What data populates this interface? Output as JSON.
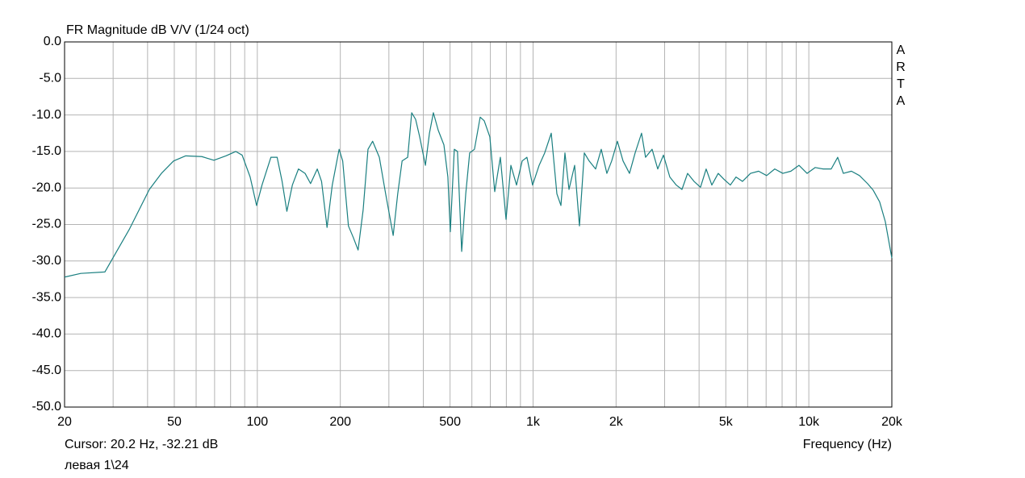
{
  "chart_data": {
    "type": "line",
    "title": "FR Magnitude dB V/V (1/24 oct)",
    "watermark": "ARTA",
    "cursor_text": "Cursor: 20.2 Hz, -32.21 dB",
    "xlabel": "Frequency (Hz)",
    "footer": "левая 1\\24",
    "xscale": "log",
    "grid": true,
    "xlim": [
      20,
      20000
    ],
    "ylim": [
      -50,
      0
    ],
    "xticks": [
      20,
      {
        "value": 30,
        "label": null
      },
      {
        "value": 40,
        "label": null
      },
      50,
      {
        "value": 60,
        "label": null
      },
      {
        "value": 70,
        "label": null
      },
      {
        "value": 80,
        "label": null
      },
      {
        "value": 90,
        "label": null
      },
      100,
      200,
      {
        "value": 300,
        "label": null
      },
      {
        "value": 400,
        "label": null
      },
      500,
      {
        "value": 600,
        "label": null
      },
      {
        "value": 700,
        "label": null
      },
      {
        "value": 800,
        "label": null
      },
      {
        "value": 900,
        "label": null
      },
      {
        "value": 1000,
        "label": "1k"
      },
      {
        "value": 2000,
        "label": "2k"
      },
      {
        "value": 3000,
        "label": null
      },
      {
        "value": 4000,
        "label": null
      },
      {
        "value": 5000,
        "label": "5k"
      },
      {
        "value": 6000,
        "label": null
      },
      {
        "value": 7000,
        "label": null
      },
      {
        "value": 8000,
        "label": null
      },
      {
        "value": 9000,
        "label": null
      },
      {
        "value": 10000,
        "label": "10k"
      },
      {
        "value": 20000,
        "label": "20k"
      }
    ],
    "yticks": [
      {
        "value": 0,
        "label": "0.0"
      },
      {
        "value": -5,
        "label": "-5.0"
      },
      {
        "value": -10,
        "label": "-10.0"
      },
      {
        "value": -15,
        "label": "-15.0"
      },
      {
        "value": -20,
        "label": "-20.0"
      },
      {
        "value": -25,
        "label": "-25.0"
      },
      {
        "value": -30,
        "label": "-30.0"
      },
      {
        "value": -35,
        "label": "-35.0"
      },
      {
        "value": -40,
        "label": "-40.0"
      },
      {
        "value": -45,
        "label": "-45.0"
      },
      {
        "value": -50,
        "label": "-50.0"
      }
    ],
    "x": [
      20,
      22.9,
      28.0,
      34.3,
      40.6,
      44.9,
      49.7,
      55.0,
      62.9,
      69.6,
      77.0,
      83.5,
      88.1,
      94.2,
      99.4,
      104,
      112,
      118,
      123,
      128,
      134,
      141,
      149,
      156,
      165,
      171,
      179,
      187,
      198,
      204,
      214,
      223,
      232,
      242,
      252,
      262,
      277,
      292,
      311,
      323,
      335,
      351,
      363,
      375,
      388,
      407,
      421,
      435,
      453,
      475,
      491,
      501,
      518,
      532,
      551,
      570,
      589,
      613,
      643,
      665,
      697,
      726,
      761,
      798,
      831,
      871,
      913,
      950,
      996,
      1052,
      1102,
      1164,
      1220,
      1262,
      1305,
      1350,
      1415,
      1473,
      1534,
      1597,
      1686,
      1767,
      1852,
      1928,
      2022,
      2120,
      2237,
      2345,
      2474,
      2558,
      2702,
      2832,
      2970,
      3133,
      3306,
      3467,
      3634,
      3835,
      4047,
      4243,
      4449,
      4693,
      4920,
      5193,
      5445,
      5745,
      6146,
      6576,
      7032,
      7524,
      8048,
      8610,
      9210,
      9852,
      10540,
      11272,
      12056,
      12726,
      13342,
      14272,
      15266,
      16326,
      17116,
      18064,
      18938,
      20000
    ],
    "series": [
      {
        "name": "левая 1\\24",
        "color": "#1a7f80",
        "values": [
          -32.2,
          -31.7,
          -31.5,
          -25.7,
          -20.2,
          -18.0,
          -16.3,
          -15.6,
          -15.7,
          -16.2,
          -15.6,
          -15.0,
          -15.5,
          -18.5,
          -22.4,
          -19.6,
          -15.8,
          -15.8,
          -19.1,
          -23.2,
          -19.6,
          -17.4,
          -18.0,
          -19.4,
          -17.4,
          -19.1,
          -25.4,
          -19.6,
          -14.7,
          -16.3,
          -25.2,
          -26.8,
          -28.5,
          -23.0,
          -14.7,
          -13.6,
          -15.8,
          -20.8,
          -26.5,
          -20.8,
          -16.3,
          -15.8,
          -9.7,
          -10.6,
          -13.0,
          -16.9,
          -12.5,
          -9.7,
          -12.1,
          -14.1,
          -18.5,
          -26.0,
          -14.7,
          -15.0,
          -28.7,
          -20.8,
          -15.2,
          -14.7,
          -10.3,
          -10.8,
          -13.0,
          -20.5,
          -15.8,
          -24.3,
          -16.9,
          -19.6,
          -16.3,
          -15.8,
          -19.6,
          -16.9,
          -15.2,
          -12.5,
          -20.8,
          -22.4,
          -15.2,
          -20.2,
          -16.9,
          -25.2,
          -15.2,
          -16.3,
          -17.4,
          -14.7,
          -18.0,
          -16.3,
          -13.6,
          -16.3,
          -18.0,
          -15.2,
          -12.5,
          -15.8,
          -14.7,
          -17.4,
          -15.5,
          -18.5,
          -19.6,
          -20.2,
          -18.0,
          -19.1,
          -19.9,
          -17.4,
          -19.6,
          -18.0,
          -18.8,
          -19.6,
          -18.5,
          -19.1,
          -18.0,
          -17.7,
          -18.3,
          -17.4,
          -18.0,
          -17.7,
          -16.9,
          -18.0,
          -17.2,
          -17.4,
          -17.4,
          -15.8,
          -18.0,
          -17.7,
          -18.3,
          -19.4,
          -20.3,
          -21.9,
          -24.6,
          -29.6
        ]
      }
    ]
  }
}
